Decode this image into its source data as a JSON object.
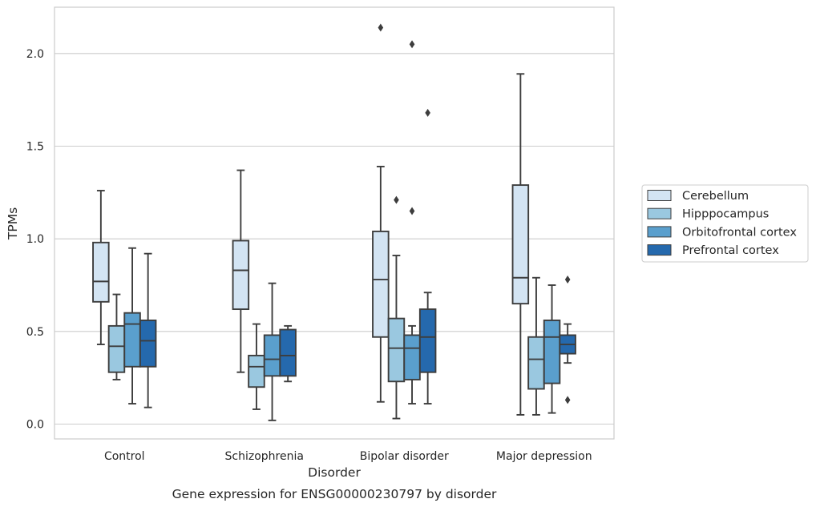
{
  "caption": "Gene expression for ENSG00000230797 by disorder",
  "chart_data": {
    "type": "box",
    "title": "",
    "xlabel": "Disorder",
    "ylabel": "TPMs",
    "categories": [
      "Control",
      "Schizophrenia",
      "Bipolar disorder",
      "Major depression"
    ],
    "ylim": [
      -0.08,
      2.25
    ],
    "yticks": [
      0.0,
      0.5,
      1.0,
      1.5,
      2.0
    ],
    "ytick_labels": [
      "0.0",
      "0.5",
      "1.0",
      "1.5",
      "2.0"
    ],
    "grid": true,
    "legend_position": "right",
    "series": [
      {
        "name": "Cerebellum",
        "color": "#d3e4f3",
        "boxes": [
          {
            "whislo": 0.43,
            "q1": 0.66,
            "med": 0.77,
            "q3": 0.98,
            "whishi": 1.26,
            "fliers": []
          },
          {
            "whislo": 0.28,
            "q1": 0.62,
            "med": 0.83,
            "q3": 0.99,
            "whishi": 1.37,
            "fliers": []
          },
          {
            "whislo": 0.12,
            "q1": 0.47,
            "med": 0.78,
            "q3": 1.04,
            "whishi": 1.39,
            "fliers": [
              2.14
            ]
          },
          {
            "whislo": 0.05,
            "q1": 0.65,
            "med": 0.79,
            "q3": 1.29,
            "whishi": 1.89,
            "fliers": []
          }
        ]
      },
      {
        "name": "Hipppocampus",
        "color": "#9ac8e0",
        "boxes": [
          {
            "whislo": 0.24,
            "q1": 0.28,
            "med": 0.42,
            "q3": 0.53,
            "whishi": 0.7,
            "fliers": []
          },
          {
            "whislo": 0.08,
            "q1": 0.2,
            "med": 0.31,
            "q3": 0.37,
            "whishi": 0.54,
            "fliers": []
          },
          {
            "whislo": 0.03,
            "q1": 0.23,
            "med": 0.41,
            "q3": 0.57,
            "whishi": 0.91,
            "fliers": [
              1.21
            ]
          },
          {
            "whislo": 0.05,
            "q1": 0.19,
            "med": 0.35,
            "q3": 0.47,
            "whishi": 0.79,
            "fliers": []
          }
        ]
      },
      {
        "name": "Orbitofrontal cortex",
        "color": "#5a9fcd",
        "boxes": [
          {
            "whislo": 0.11,
            "q1": 0.31,
            "med": 0.54,
            "q3": 0.6,
            "whishi": 0.95,
            "fliers": []
          },
          {
            "whislo": 0.02,
            "q1": 0.26,
            "med": 0.35,
            "q3": 0.48,
            "whishi": 0.76,
            "fliers": []
          },
          {
            "whislo": 0.11,
            "q1": 0.24,
            "med": 0.41,
            "q3": 0.48,
            "whishi": 0.53,
            "fliers": [
              1.15,
              2.05
            ]
          },
          {
            "whislo": 0.06,
            "q1": 0.22,
            "med": 0.47,
            "q3": 0.56,
            "whishi": 0.75,
            "fliers": []
          }
        ]
      },
      {
        "name": "Prefrontal cortex",
        "color": "#2569ad",
        "boxes": [
          {
            "whislo": 0.09,
            "q1": 0.31,
            "med": 0.45,
            "q3": 0.56,
            "whishi": 0.92,
            "fliers": []
          },
          {
            "whislo": 0.23,
            "q1": 0.26,
            "med": 0.37,
            "q3": 0.51,
            "whishi": 0.53,
            "fliers": []
          },
          {
            "whislo": 0.11,
            "q1": 0.28,
            "med": 0.47,
            "q3": 0.62,
            "whishi": 0.71,
            "fliers": [
              1.68
            ]
          },
          {
            "whislo": 0.33,
            "q1": 0.38,
            "med": 0.43,
            "q3": 0.48,
            "whishi": 0.54,
            "fliers": [
              0.13,
              0.78
            ]
          }
        ]
      }
    ]
  }
}
